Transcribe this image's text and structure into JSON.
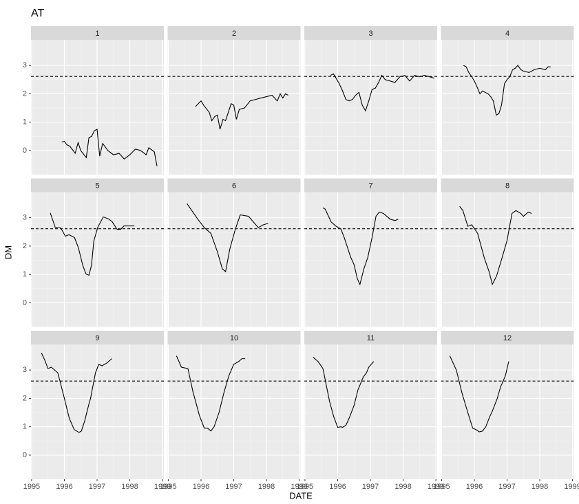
{
  "chart_data": {
    "type": "line",
    "title": "AT",
    "xlabel": "DATE",
    "ylabel": "DM",
    "xlim": [
      1994.98,
      1999.04
    ],
    "xticks": [
      1995,
      1996,
      1997,
      1998,
      1999
    ],
    "ylim": [
      -0.85,
      3.9
    ],
    "yticks": [
      0,
      1,
      2,
      3
    ],
    "hline": 2.61,
    "color": "#000000",
    "grid": true,
    "panels": [
      {
        "name": "1",
        "x": [
          1995.92,
          1996.0,
          1996.08,
          1996.17,
          1996.33,
          1996.42,
          1996.5,
          1996.67,
          1996.75,
          1996.83,
          1996.92,
          1997.0,
          1997.08,
          1997.17,
          1997.33,
          1997.5,
          1997.67,
          1997.83,
          1998.0,
          1998.17,
          1998.33,
          1998.5,
          1998.58,
          1998.75,
          1998.83
        ],
        "values": [
          0.3,
          0.32,
          0.2,
          0.15,
          -0.1,
          0.28,
          0,
          -0.25,
          0.45,
          0.5,
          0.7,
          0.75,
          -0.2,
          0.25,
          0,
          -0.15,
          -0.1,
          -0.3,
          -0.15,
          0.05,
          0,
          -0.15,
          0.1,
          -0.05,
          -0.55
        ]
      },
      {
        "name": "2",
        "x": [
          1995.83,
          1996.0,
          1996.08,
          1996.25,
          1996.33,
          1996.42,
          1996.5,
          1996.58,
          1996.67,
          1996.75,
          1996.92,
          1997.0,
          1997.08,
          1997.17,
          1997.33,
          1997.5,
          1997.67,
          1997.83,
          1998.0,
          1998.17,
          1998.33,
          1998.42,
          1998.5,
          1998.58,
          1998.66
        ],
        "values": [
          1.55,
          1.75,
          1.6,
          1.35,
          1.05,
          1.2,
          1.25,
          0.75,
          1.1,
          1.05,
          1.65,
          1.6,
          1.1,
          1.45,
          1.5,
          1.75,
          1.8,
          1.85,
          1.9,
          1.95,
          1.75,
          2.0,
          1.85,
          2.0,
          1.95
        ]
      },
      {
        "name": "3",
        "x": [
          1995.78,
          1995.87,
          1995.95,
          1996.05,
          1996.15,
          1996.25,
          1996.35,
          1996.45,
          1996.55,
          1996.65,
          1996.75,
          1996.85,
          1996.95,
          1997.05,
          1997.15,
          1997.25,
          1997.35,
          1997.45,
          1997.6,
          1997.75,
          1997.9,
          1998.05,
          1998.2,
          1998.35,
          1998.5,
          1998.65,
          1998.8,
          1998.95
        ],
        "values": [
          2.65,
          2.7,
          2.55,
          2.35,
          2.1,
          1.8,
          1.75,
          1.8,
          1.95,
          2.05,
          1.6,
          1.4,
          1.75,
          2.15,
          2.2,
          2.4,
          2.65,
          2.5,
          2.45,
          2.4,
          2.6,
          2.65,
          2.45,
          2.65,
          2.6,
          2.65,
          2.6,
          2.55
        ]
      },
      {
        "name": "4",
        "x": [
          1995.67,
          1995.75,
          1995.83,
          1995.92,
          1996.0,
          1996.08,
          1996.17,
          1996.25,
          1996.33,
          1996.42,
          1996.5,
          1996.58,
          1996.67,
          1996.75,
          1996.83,
          1996.92,
          1997.0,
          1997.08,
          1997.17,
          1997.25,
          1997.33,
          1997.42,
          1997.5,
          1997.67,
          1997.83,
          1998.0,
          1998.17,
          1998.25,
          1998.33
        ],
        "values": [
          3.0,
          2.95,
          2.75,
          2.6,
          2.45,
          2.25,
          2.0,
          2.1,
          2.05,
          2.0,
          1.9,
          1.75,
          1.25,
          1.3,
          1.6,
          2.35,
          2.5,
          2.6,
          2.85,
          2.9,
          3.0,
          2.85,
          2.8,
          2.75,
          2.85,
          2.9,
          2.85,
          2.95,
          2.95
        ]
      },
      {
        "name": "5",
        "x": [
          1995.57,
          1995.72,
          1995.89,
          1996.03,
          1996.14,
          1996.31,
          1996.43,
          1996.56,
          1996.66,
          1996.75,
          1996.83,
          1996.9,
          1997.02,
          1997.19,
          1997.36,
          1997.46,
          1997.61,
          1997.72,
          1997.82,
          1998.14
        ],
        "values": [
          3.17,
          2.66,
          2.64,
          2.35,
          2.4,
          2.3,
          1.94,
          1.33,
          1.02,
          0.97,
          1.33,
          2.18,
          2.66,
          3.03,
          2.95,
          2.86,
          2.59,
          2.59,
          2.71,
          2.71
        ]
      },
      {
        "name": "6",
        "x": [
          1995.57,
          1995.9,
          1996.1,
          1996.3,
          1996.5,
          1996.65,
          1996.75,
          1996.88,
          1997.05,
          1997.2,
          1997.45,
          1997.6,
          1997.75,
          1997.9,
          1998.05
        ],
        "values": [
          3.5,
          2.95,
          2.65,
          2.45,
          1.8,
          1.2,
          1.1,
          1.9,
          2.6,
          3.1,
          3.05,
          2.85,
          2.65,
          2.75,
          2.8
        ]
      },
      {
        "name": "7",
        "x": [
          1995.55,
          1995.62,
          1995.8,
          1995.95,
          1996.1,
          1996.2,
          1996.4,
          1996.5,
          1996.6,
          1996.68,
          1996.8,
          1996.92,
          1997.05,
          1997.17,
          1997.27,
          1997.4,
          1997.6,
          1997.75,
          1997.85
        ],
        "values": [
          3.35,
          3.3,
          2.85,
          2.7,
          2.6,
          2.3,
          1.6,
          1.35,
          0.85,
          0.65,
          1.2,
          1.6,
          2.3,
          3.05,
          3.2,
          3.15,
          2.95,
          2.9,
          2.95
        ]
      },
      {
        "name": "8",
        "x": [
          1995.55,
          1995.65,
          1995.8,
          1995.92,
          1996.1,
          1996.3,
          1996.45,
          1996.55,
          1996.68,
          1996.85,
          1997.0,
          1997.15,
          1997.27,
          1997.42,
          1997.5,
          1997.65,
          1997.75
        ],
        "values": [
          3.4,
          3.25,
          2.7,
          2.75,
          2.45,
          1.6,
          1.1,
          0.65,
          0.95,
          1.6,
          2.2,
          3.15,
          3.25,
          3.15,
          3.05,
          3.2,
          3.15
        ]
      },
      {
        "name": "9",
        "x": [
          1995.3,
          1995.4,
          1995.5,
          1995.6,
          1995.8,
          1996.0,
          1996.15,
          1996.3,
          1996.45,
          1996.52,
          1996.62,
          1996.75,
          1996.8,
          1996.95,
          1997.05,
          1997.15,
          1997.3,
          1997.45
        ],
        "values": [
          3.6,
          3.35,
          3.05,
          3.1,
          2.9,
          2.0,
          1.3,
          0.9,
          0.8,
          0.85,
          1.2,
          1.8,
          2.0,
          2.9,
          3.2,
          3.15,
          3.25,
          3.4
        ]
      },
      {
        "name": "10",
        "x": [
          1995.25,
          1995.4,
          1995.6,
          1995.75,
          1995.95,
          1996.1,
          1996.2,
          1996.3,
          1996.4,
          1996.55,
          1996.7,
          1996.85,
          1997.0,
          1997.15,
          1997.25,
          1997.35
        ],
        "values": [
          3.5,
          3.1,
          3.05,
          2.25,
          1.4,
          0.95,
          0.95,
          0.85,
          1.0,
          1.5,
          2.2,
          2.8,
          3.2,
          3.3,
          3.4,
          3.4
        ]
      },
      {
        "name": "11",
        "x": [
          1995.25,
          1995.4,
          1995.55,
          1995.75,
          1995.88,
          1996.0,
          1996.1,
          1996.15,
          1996.25,
          1996.35,
          1996.5,
          1996.62,
          1996.78,
          1996.88,
          1996.95,
          1997.1
        ],
        "values": [
          3.45,
          3.3,
          3.05,
          1.9,
          1.35,
          0.98,
          1.0,
          0.98,
          1.05,
          1.3,
          1.75,
          2.3,
          2.75,
          2.9,
          3.1,
          3.3
        ]
      },
      {
        "name": "12",
        "x": [
          1995.25,
          1995.45,
          1995.62,
          1995.8,
          1995.95,
          1996.05,
          1996.15,
          1996.25,
          1996.35,
          1996.45,
          1996.55,
          1996.7,
          1996.8,
          1996.95,
          1997.05
        ],
        "values": [
          3.5,
          3.0,
          2.2,
          1.5,
          0.95,
          0.9,
          0.82,
          0.85,
          1.0,
          1.3,
          1.55,
          2.0,
          2.4,
          2.8,
          3.3
        ]
      }
    ]
  }
}
